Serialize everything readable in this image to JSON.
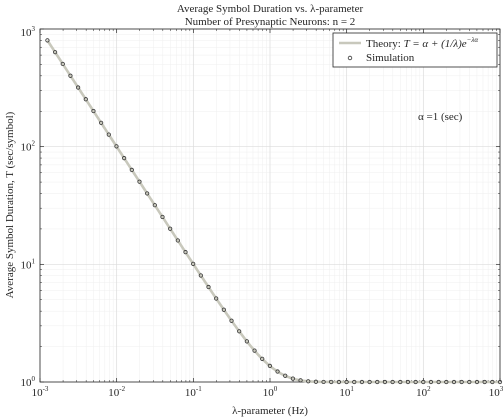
{
  "chart_data": {
    "type": "line",
    "title": "Average Symbol Duration vs. λ-parameter",
    "subtitle": "Number of Presynaptic Neurons: n = 2",
    "xlabel": "λ-parameter (Hz)",
    "ylabel": "Average Symbol Duration, T (sec/symbol)",
    "xscale": "log",
    "yscale": "log",
    "xlim": [
      0.001,
      1000
    ],
    "ylim": [
      1,
      1000
    ],
    "xticks": [
      "10",
      "10",
      "10",
      "10",
      "10",
      "10",
      "10"
    ],
    "xtick_exponents": [
      "-3",
      "-2",
      "-1",
      "0",
      "1",
      "2",
      "3"
    ],
    "yticks": [
      "10",
      "10",
      "10",
      "10"
    ],
    "ytick_exponents": [
      "0",
      "1",
      "2",
      "3"
    ],
    "grid": true,
    "minor_grid": true,
    "legend_location": "top-right",
    "annotation": "α =1 (sec)",
    "alpha": 1,
    "series": [
      {
        "name": "Theory",
        "style": "line",
        "color": "#c8c8bc",
        "formula": "T = alpha + (1/lambda) * exp(-lambda * alpha)",
        "x_range": [
          0.00125,
          1000
        ]
      },
      {
        "name": "Simulation",
        "style": "markers",
        "color": "#333333",
        "x_range": [
          0.00125,
          1000
        ],
        "num_points": 60
      }
    ],
    "legend": {
      "theory_label": "Theory: ",
      "theory_formula": "T = α + (1/λ)e",
      "theory_exponent": "−λα",
      "simulation_label": "Simulation"
    }
  }
}
